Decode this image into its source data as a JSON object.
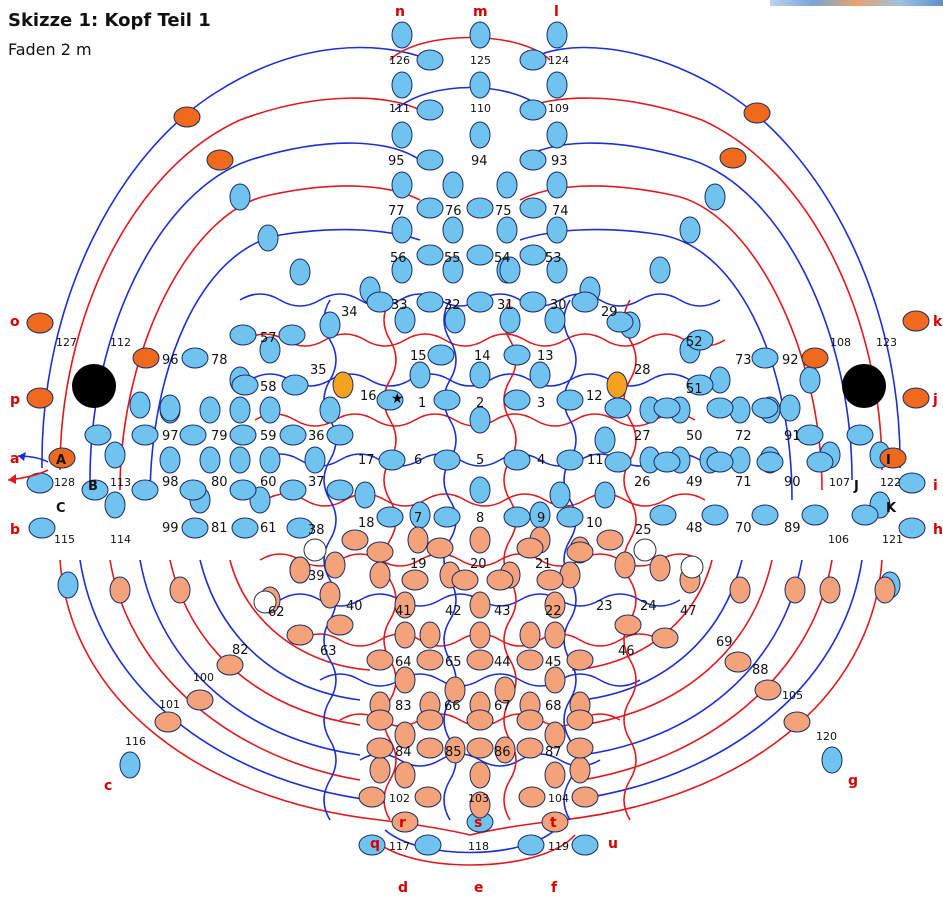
{
  "header": {
    "title": "Skizze 1: Kopf Teil 1",
    "subtitle": "Faden 2 m"
  },
  "colors": {
    "blue_bead": "#6fc3ee",
    "orange_bead": "#f4a27a",
    "dark_orange_bead": "#ef6a1c",
    "amber_bead": "#f6a21f",
    "blue_thread": "#1b2fd6",
    "red_thread": "#e0191c",
    "label_red": "#d40000"
  },
  "icons": [
    "star-icon",
    "arrow-icon"
  ],
  "bead_labels": [
    "1",
    "2",
    "3",
    "4",
    "5",
    "6",
    "7",
    "8",
    "9",
    "10",
    "11",
    "12",
    "13",
    "14",
    "15",
    "16",
    "17",
    "18",
    "19",
    "20",
    "21",
    "22",
    "23",
    "24",
    "25",
    "26",
    "27",
    "28",
    "29",
    "30",
    "31",
    "32",
    "33",
    "34",
    "35",
    "36",
    "37",
    "38",
    "39",
    "40",
    "41",
    "42",
    "43",
    "44",
    "45",
    "46",
    "47",
    "48",
    "49",
    "50",
    "51",
    "52",
    "53",
    "54",
    "55",
    "56",
    "57",
    "58",
    "59",
    "60",
    "61",
    "62",
    "63",
    "64",
    "65",
    "66",
    "67",
    "68",
    "69",
    "70",
    "71",
    "72",
    "73",
    "74",
    "75",
    "76",
    "77",
    "78",
    "79",
    "80",
    "81",
    "82",
    "83",
    "84",
    "85",
    "86",
    "87",
    "88",
    "89",
    "90",
    "91",
    "92",
    "93",
    "94",
    "95",
    "96",
    "97",
    "98",
    "99",
    "100",
    "101",
    "102",
    "103",
    "104",
    "105",
    "106",
    "107",
    "108",
    "109",
    "110",
    "111",
    "112",
    "113",
    "114",
    "115",
    "116",
    "117",
    "118",
    "119",
    "120",
    "121",
    "122",
    "123",
    "124",
    "125",
    "126",
    "127",
    "128"
  ],
  "thread_labels": [
    "a",
    "b",
    "c",
    "d",
    "e",
    "f",
    "g",
    "h",
    "i",
    "j",
    "k",
    "l",
    "m",
    "n",
    "o",
    "p",
    "q",
    "r",
    "s",
    "t",
    "u"
  ],
  "lettered_beads": [
    "A",
    "B",
    "C",
    "I",
    "J",
    "K"
  ]
}
